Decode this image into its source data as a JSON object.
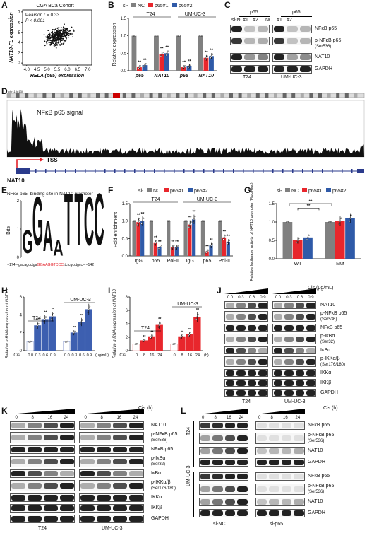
{
  "panels": {
    "A": {
      "letter": "A",
      "title": "TCGA BCa Cohort",
      "stat1": "Pearson r = 0.33",
      "stat2": "P < 0.001",
      "xlabel": "RELA (p65) expression",
      "ylabel": "NAT10-FL expression",
      "xticks": [
        "4.0",
        "4.5",
        "5.0",
        "5.5",
        "6.0",
        "6.5",
        "7.0"
      ],
      "yticks": [
        "7",
        "6",
        "5",
        "4",
        "3",
        "2"
      ]
    },
    "B": {
      "letter": "B",
      "legend_prefix": "si-",
      "legend": [
        "NC",
        "p65#1",
        "p65#2"
      ],
      "groups": [
        "T24",
        "UM-UC-3"
      ],
      "xlabels": [
        "p65",
        "NAT10",
        "p65",
        "NAT10"
      ],
      "ylabel": "Relative expression",
      "yticks": [
        "1.5",
        "1.0",
        "0.5",
        "0.0"
      ],
      "sig": "**"
    },
    "C": {
      "letter": "C",
      "header": [
        "p65",
        "p65"
      ],
      "lanes": [
        "si-NC",
        "#1",
        "#2",
        "NC",
        "#1",
        "#2"
      ],
      "rows": [
        "NFκB p65",
        "p-NFκB p65",
        "(Ser536)",
        "NAT10",
        "GAPDH"
      ],
      "cells": [
        "T24",
        "UM-UC-3"
      ]
    },
    "D": {
      "letter": "D",
      "signal": "NFκB p65 signal",
      "tss": "TSS",
      "gene": "NAT10",
      "chr": "chr11 (p13)"
    },
    "E": {
      "letter": "E",
      "title": "NFκB p65–binding site in NAT10 promoter",
      "ylabel": "Bits",
      "yticks": [
        "2",
        "1",
        "0"
      ],
      "seq_pre": "−174 –gacagcctga",
      "seq_site": "GGAAGGTCCC",
      "seq_post": "ttctcgcctgcc– −142"
    },
    "F": {
      "letter": "F",
      "legend_prefix": "si-",
      "legend": [
        "NC",
        "p65#1",
        "p65#2"
      ],
      "groups": [
        "T24",
        "UM-UC-3"
      ],
      "xlabels": [
        "IgG",
        "p65",
        "Pol-II",
        "IgG",
        "p65",
        "Pol-II"
      ],
      "ylabel": "Fold enrichment",
      "yticks": [
        "1.5",
        "1.0",
        "0.5",
        "0.0"
      ],
      "sig": "**"
    },
    "G": {
      "letter": "G",
      "legend_prefix": "si-",
      "legend": [
        "NC",
        "p65#1",
        "p65#2"
      ],
      "xlabels": [
        "WT",
        "Mut"
      ],
      "ylabel": "Relative luciferase activity of NAT10 promoter (Fluc/Rluc)",
      "yticks": [
        "1.5",
        "1.0",
        "0.5",
        "0.0"
      ],
      "sig": "**"
    },
    "H": {
      "letter": "H",
      "groups": [
        "T24",
        "UM-UC-3"
      ],
      "xprefix": "Cis",
      "xticks": [
        "0.0",
        "0.3",
        "0.6",
        "0.9",
        "0.0",
        "0.3",
        "0.6",
        "0.9"
      ],
      "xunit": "(μg/mL)",
      "ylabel": "Relative mRNA expression of NAT10",
      "yticks": [
        "6",
        "4",
        "2",
        "0"
      ],
      "sig": "**"
    },
    "I": {
      "letter": "I",
      "groups": [
        "T24",
        "UM-UC-3"
      ],
      "xprefix": "Cis",
      "xticks": [
        "0",
        "8",
        "16",
        "24",
        "0",
        "8",
        "16",
        "24"
      ],
      "xunit": "(h)",
      "ylabel": "Relative mRNA expression of NAT10",
      "yticks": [
        "8",
        "6",
        "4",
        "2",
        "0"
      ],
      "sig": "**"
    },
    "J": {
      "letter": "J",
      "unit": "Cis (μg/mL)",
      "conc": [
        "0.0",
        "0.3",
        "0.6",
        "0.9",
        "0.0",
        "0.3",
        "0.6",
        "0.9"
      ],
      "rows": [
        "NAT10",
        "p-NFκB p65",
        "(Ser536)",
        "NFκB p65",
        "p-IκBα",
        "(Ser32)",
        "IκBα",
        "p-IKKα/β",
        "(Ser176/180)",
        "IKKα",
        "IKKβ",
        "GAPDH"
      ],
      "cells": [
        "T24",
        "UM-UC-3"
      ]
    },
    "K": {
      "letter": "K",
      "unit": "Cis (h)",
      "times": [
        "0",
        "8",
        "16",
        "24",
        "0",
        "8",
        "16",
        "24"
      ],
      "rows": [
        "NAT10",
        "p-NFκB p65",
        "(Ser536)",
        "NFκB p65",
        "p-IκBα",
        "(Ser32)",
        "IκBα",
        "p-IKKα/β",
        "(Ser176/180)",
        "IKKα",
        "IKKβ",
        "GAPDH"
      ],
      "cells": [
        "T24",
        "UM-UC-3"
      ]
    },
    "L": {
      "letter": "L",
      "unit": "Cis (h)",
      "times": [
        "0",
        "8",
        "16",
        "24",
        "0",
        "8",
        "16",
        "24"
      ],
      "rows": [
        "NFκB p65",
        "p-NFκB p65",
        "(Ser536)",
        "NAT10",
        "GAPDH",
        "NFκB p65",
        "p-NFκB p65",
        "(Ser536)",
        "NAT10",
        "GAPDH"
      ],
      "cells": [
        "T24",
        "UM-UC-3"
      ],
      "conds": [
        "si-NC",
        "si-p65"
      ]
    }
  },
  "colors": {
    "nc": "#808080",
    "p1": "#e8262c",
    "p2": "#2f5aa8",
    "h": "#3d5fb0",
    "i": "#e8262c",
    "tss": "#e32028"
  },
  "chart_data": [
    {
      "panel": "B",
      "type": "bar",
      "categories": [
        "T24 p65",
        "T24 NAT10",
        "UM-UC-3 p65",
        "UM-UC-3 NAT10"
      ],
      "series": [
        {
          "name": "NC",
          "values": [
            1.0,
            1.0,
            1.0,
            1.0
          ]
        },
        {
          "name": "p65#1",
          "values": [
            0.1,
            0.47,
            0.1,
            0.37
          ]
        },
        {
          "name": "p65#2",
          "values": [
            0.16,
            0.5,
            0.13,
            0.42
          ]
        }
      ],
      "ylabel": "Relative expression",
      "ylim": [
        0,
        1.5
      ]
    },
    {
      "panel": "F",
      "type": "bar",
      "categories": [
        "T24 IgG",
        "T24 p65",
        "T24 Pol-II",
        "UM-UC-3 IgG",
        "UM-UC-3 p65",
        "UM-UC-3 Pol-II"
      ],
      "series": [
        {
          "name": "NC",
          "values": [
            1.0,
            1.0,
            1.0,
            1.0,
            1.0,
            1.0
          ]
        },
        {
          "name": "p65#1",
          "values": [
            0.97,
            0.37,
            0.25,
            0.9,
            0.13,
            0.53
          ]
        },
        {
          "name": "p65#2",
          "values": [
            1.0,
            0.25,
            0.25,
            1.05,
            0.3,
            0.4
          ]
        }
      ],
      "ylabel": "Fold enrichment",
      "ylim": [
        0,
        1.5
      ]
    },
    {
      "panel": "G",
      "type": "bar",
      "categories": [
        "WT",
        "Mut"
      ],
      "series": [
        {
          "name": "NC",
          "values": [
            1.0,
            1.0
          ]
        },
        {
          "name": "p65#1",
          "values": [
            0.5,
            1.02
          ]
        },
        {
          "name": "p65#2",
          "values": [
            0.58,
            1.1
          ]
        }
      ],
      "ylabel": "Relative luciferase activity of NAT10 promoter (Fluc/Rluc)",
      "ylim": [
        0,
        1.5
      ]
    },
    {
      "panel": "H",
      "type": "bar",
      "categories": [
        "T24 0.0",
        "T24 0.3",
        "T24 0.6",
        "T24 0.9",
        "UM-UC-3 0.0",
        "UM-UC-3 0.3",
        "UM-UC-3 0.6",
        "UM-UC-3 0.9"
      ],
      "values": [
        1.0,
        2.8,
        3.5,
        3.8,
        1.0,
        2.0,
        3.2,
        4.6
      ],
      "ylabel": "Relative mRNA expression of NAT10",
      "ylim": [
        0,
        6
      ]
    },
    {
      "panel": "I",
      "type": "bar",
      "categories": [
        "T24 0",
        "T24 8",
        "T24 16",
        "T24 24",
        "UM-UC-3 0",
        "UM-UC-3 8",
        "UM-UC-3 16",
        "UM-UC-3 24"
      ],
      "values": [
        1.0,
        1.5,
        2.1,
        3.8,
        1.0,
        2.1,
        2.4,
        5.0
      ],
      "ylabel": "Relative mRNA expression of NAT10",
      "ylim": [
        0,
        8
      ]
    },
    {
      "panel": "A",
      "type": "scatter",
      "title": "TCGA BCa Cohort",
      "xlabel": "RELA (p65) expression",
      "ylabel": "NAT10-FL expression",
      "xlim": [
        3.8,
        7.2
      ],
      "ylim": [
        1.8,
        7.2
      ]
    }
  ]
}
